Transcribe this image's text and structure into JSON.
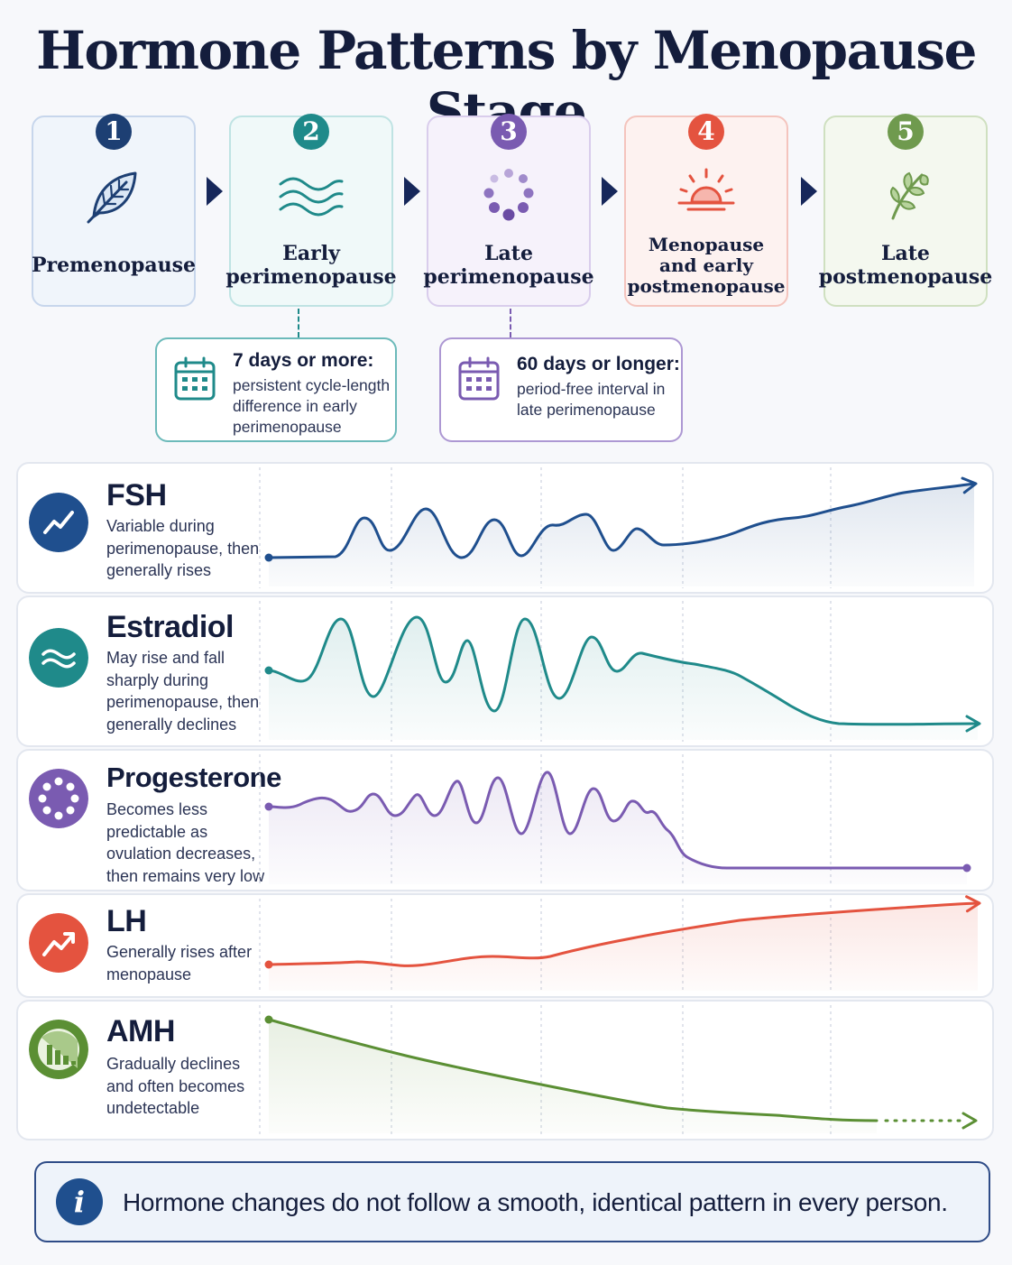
{
  "title": "Hormone Patterns by Menopause Stage",
  "stages": [
    {
      "number": "1",
      "label": "Premenopause",
      "icon": "leaf-icon",
      "color": "#1d3f73",
      "border": "#c7d6ec",
      "bg": "#f0f5fb"
    },
    {
      "number": "2",
      "label": "Early perimenopause",
      "icon": "waves-icon",
      "color": "#1f8a8a",
      "border": "#bfe3e3",
      "bg": "#f0f9f9"
    },
    {
      "number": "3",
      "label": "Late perimenopause",
      "icon": "dots-circle-icon",
      "color": "#7a5bb1",
      "border": "#d9cdec",
      "bg": "#f6f2fb"
    },
    {
      "number": "4",
      "label": "Menopause and early postmenopause",
      "icon": "sunset-icon",
      "color": "#e4533f",
      "border": "#f4c4bd",
      "bg": "#fdf2f0"
    },
    {
      "number": "5",
      "label": "Late postmenopause",
      "icon": "sprout-icon",
      "color": "#6f9a4e",
      "border": "#cfe0c0",
      "bg": "#f4f8ef"
    }
  ],
  "notes": [
    {
      "heading": "7 days or more:",
      "body": "persistent cycle-length difference in early perimenopause",
      "color": "#1f8a8a"
    },
    {
      "heading": "60 days or longer:",
      "body": "period-free interval in late perimenopause",
      "color": "#7a5bb1"
    }
  ],
  "hormones": [
    {
      "name": "FSH",
      "description": "Variable during perimenopause, then generally rises",
      "color": "#1f4f8e",
      "icon": "trend-up-icon"
    },
    {
      "name": "Estradiol",
      "description": "May rise and fall sharply during perimenopause, then generally declines",
      "color": "#1f8a8a",
      "icon": "waves-icon"
    },
    {
      "name": "Progesterone",
      "description": "Becomes less predictable as ovulation decreases, then remains very low",
      "color": "#7a5bb1",
      "icon": "dots-circle-icon"
    },
    {
      "name": "LH",
      "description": "Generally rises after menopause",
      "color": "#e4533f",
      "icon": "trend-up-icon"
    },
    {
      "name": "AMH",
      "description": "Gradually declines and often becomes undetectable",
      "color": "#5b8f34",
      "icon": "declining-bars-icon"
    }
  ],
  "footer_note": "Hormone changes do not follow a smooth, identical pattern in every person."
}
